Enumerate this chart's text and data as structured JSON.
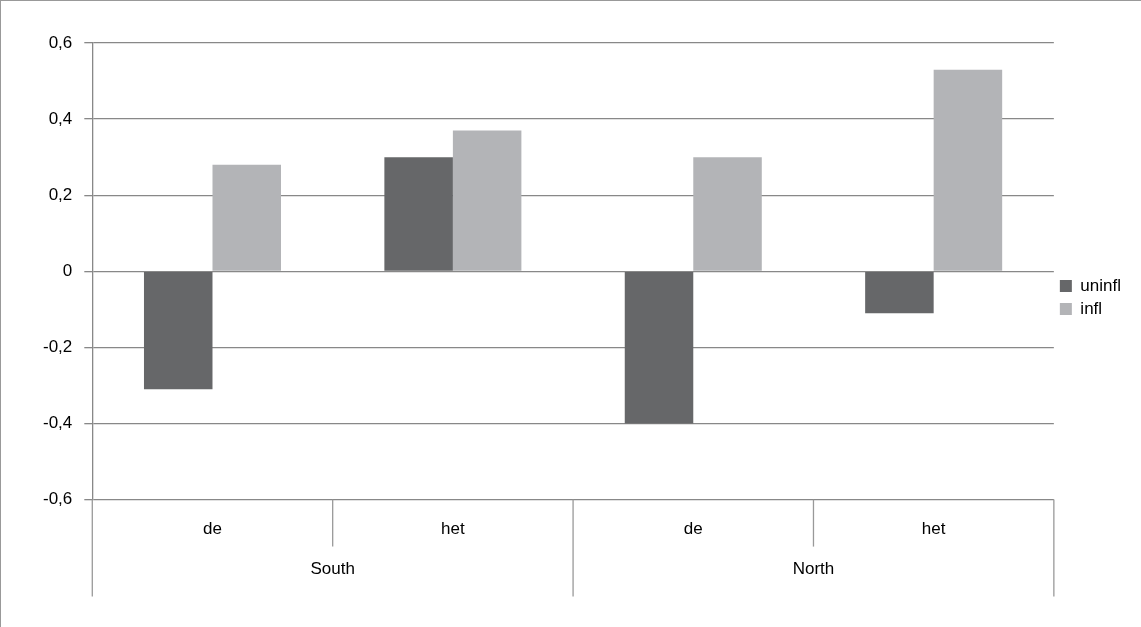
{
  "chart_data": {
    "type": "bar",
    "categories": [
      "de",
      "het",
      "de",
      "het"
    ],
    "series": [
      {
        "name": "uninfl",
        "color": "#666769",
        "values": [
          -0.31,
          0.3,
          -0.4,
          -0.11
        ]
      },
      {
        "name": "infl",
        "color": "#b3b4b7",
        "values": [
          0.28,
          0.37,
          0.3,
          0.53
        ]
      }
    ],
    "ylim": [
      -0.6,
      0.6
    ],
    "yticks": [
      {
        "value": -0.6,
        "label": "-0,6"
      },
      {
        "value": -0.4,
        "label": "-0,4"
      },
      {
        "value": -0.2,
        "label": "-0,2"
      },
      {
        "value": 0,
        "label": "0"
      },
      {
        "value": 0.2,
        "label": "0,2"
      },
      {
        "value": 0.4,
        "label": "0,4"
      },
      {
        "value": 0.6,
        "label": "0,6"
      }
    ],
    "grid": "y",
    "legend": "right",
    "annotations": [
      "South",
      "North"
    ]
  }
}
